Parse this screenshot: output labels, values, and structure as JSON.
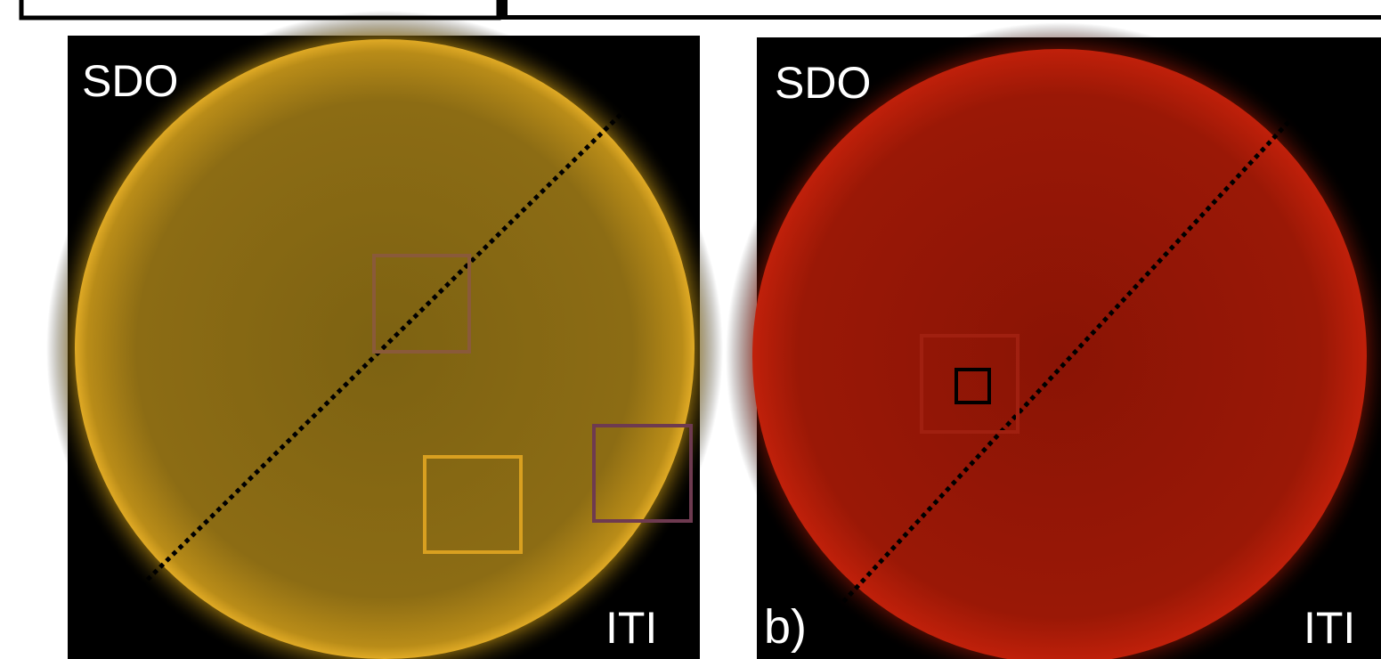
{
  "panels": [
    {
      "top_label": "SDO",
      "bottom_right_label": "ITI"
    },
    {
      "top_label": "SDO",
      "bottom_left_label": "b)",
      "bottom_right_label": "ITI"
    }
  ]
}
